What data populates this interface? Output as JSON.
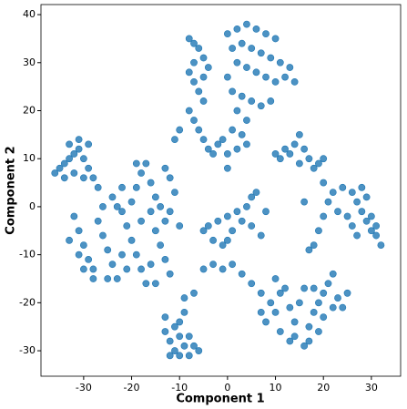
{
  "chart_data": {
    "type": "scatter",
    "x_label": "Component 1",
    "y_label": "Component 2",
    "color": "#1f77b4",
    "grid": false,
    "xlim": [
      -38.9,
      36.1
    ],
    "ylim": [
      -35.3,
      42.1
    ],
    "xticks": [
      -30,
      -20,
      -10,
      0,
      10,
      20,
      30
    ],
    "yticks": [
      -30,
      -20,
      -10,
      0,
      10,
      20,
      30,
      40
    ],
    "x": [
      -8,
      -7,
      -6,
      -5,
      -8,
      -7,
      -6,
      -5,
      -8,
      -7,
      -6,
      -5,
      -4,
      -3,
      -2,
      -7,
      -4,
      -5,
      0,
      2,
      4,
      6,
      8,
      10,
      1,
      3,
      5,
      7,
      9,
      11,
      13,
      2,
      4,
      6,
      8,
      10,
      12,
      14,
      0,
      1,
      3,
      5,
      7,
      9,
      2,
      4,
      1,
      3,
      -1,
      0,
      2,
      4,
      0,
      -11,
      -10,
      -36,
      -35,
      -34,
      -33,
      -32,
      -31,
      -30,
      -29,
      -28,
      -27,
      -33,
      -31,
      -29,
      -32,
      -30,
      -34,
      -32,
      -31,
      -30,
      -29,
      -28,
      -33,
      -31,
      -30,
      -27,
      -26,
      -25,
      -24,
      -23,
      -26,
      -24,
      -22,
      -21,
      -20,
      -19,
      -18,
      -17,
      -20,
      -19,
      -18,
      -17,
      -19,
      -16,
      -15,
      -14,
      -13,
      -16,
      -15,
      -14,
      -13,
      -12,
      -22,
      -21,
      -16,
      -12,
      -11,
      -12,
      -10,
      -13,
      -28,
      -22,
      -23,
      -25,
      -18,
      -15,
      -13,
      -12,
      -11,
      -10,
      -9,
      -8,
      -11,
      -10,
      -9,
      -12,
      -8,
      -7,
      -6,
      -10,
      -13,
      -9,
      -5,
      -4,
      -2,
      0,
      2,
      4,
      5,
      6,
      3,
      1,
      0,
      -1,
      5,
      7,
      8,
      -3,
      -5,
      -3,
      -1,
      1,
      3,
      5,
      7,
      9,
      8,
      7,
      10,
      11,
      13,
      14,
      15,
      16,
      12,
      10,
      14,
      17,
      18,
      19,
      20,
      21,
      22,
      23,
      24,
      25,
      19,
      17,
      16,
      13,
      11,
      20,
      22,
      18,
      -7,
      18,
      19,
      20,
      21,
      22,
      24,
      26,
      27,
      28,
      29,
      30,
      31,
      32,
      28,
      29,
      25,
      26,
      23,
      27,
      30,
      17,
      16,
      20,
      31,
      10,
      11,
      12,
      13,
      14,
      15,
      16,
      17,
      18,
      19,
      20,
      15
    ],
    "y": [
      35,
      34,
      33,
      31,
      28,
      26,
      24,
      22,
      20,
      18,
      16,
      14,
      12,
      11,
      13,
      30,
      29,
      27,
      36,
      37,
      38,
      37,
      36,
      35,
      33,
      34,
      33,
      32,
      31,
      30,
      29,
      30,
      29,
      28,
      27,
      26,
      27,
      26,
      27,
      24,
      23,
      22,
      21,
      22,
      20,
      18,
      16,
      15,
      14,
      11,
      12,
      13,
      8,
      14,
      16,
      7,
      8,
      9,
      10,
      11,
      12,
      10,
      8,
      6,
      4,
      13,
      14,
      13,
      7,
      6,
      6,
      -2,
      -5,
      -8,
      -11,
      -13,
      -7,
      -10,
      -13,
      -3,
      -6,
      -9,
      -12,
      -15,
      0,
      2,
      -1,
      -4,
      -7,
      -10,
      -13,
      -16,
      1,
      4,
      7,
      9,
      9,
      5,
      2,
      0,
      -3,
      -1,
      -5,
      -8,
      -11,
      -14,
      -10,
      -13,
      -12,
      6,
      3,
      -1,
      -4,
      8,
      -15,
      4,
      0,
      -15,
      -3,
      -16,
      -26,
      -28,
      -30,
      -31,
      -29,
      -27,
      -25,
      -24,
      -22,
      -31,
      -31,
      -29,
      -30,
      -27,
      -23,
      -19,
      -5,
      -4,
      -3,
      -2,
      -1,
      0,
      2,
      3,
      -3,
      -5,
      -7,
      -8,
      -4,
      -6,
      -1,
      -7,
      -13,
      -12,
      -13,
      -12,
      -14,
      -16,
      -18,
      -20,
      -24,
      -22,
      -22,
      -26,
      -28,
      -24,
      -20,
      -17,
      -17,
      -15,
      -27,
      -25,
      -22,
      -20,
      -18,
      -16,
      -14,
      -19,
      -21,
      -18,
      -26,
      -28,
      -29,
      -21,
      -18,
      -23,
      -21,
      -17,
      -18,
      -8,
      -5,
      -2,
      1,
      3,
      4,
      3,
      1,
      -1,
      -3,
      -5,
      -6,
      -8,
      4,
      2,
      -2,
      -4,
      -1,
      -6,
      -2,
      -9,
      1,
      5,
      -4,
      11,
      10,
      12,
      11,
      13,
      15,
      12,
      10,
      8,
      9,
      10,
      9
    ]
  }
}
